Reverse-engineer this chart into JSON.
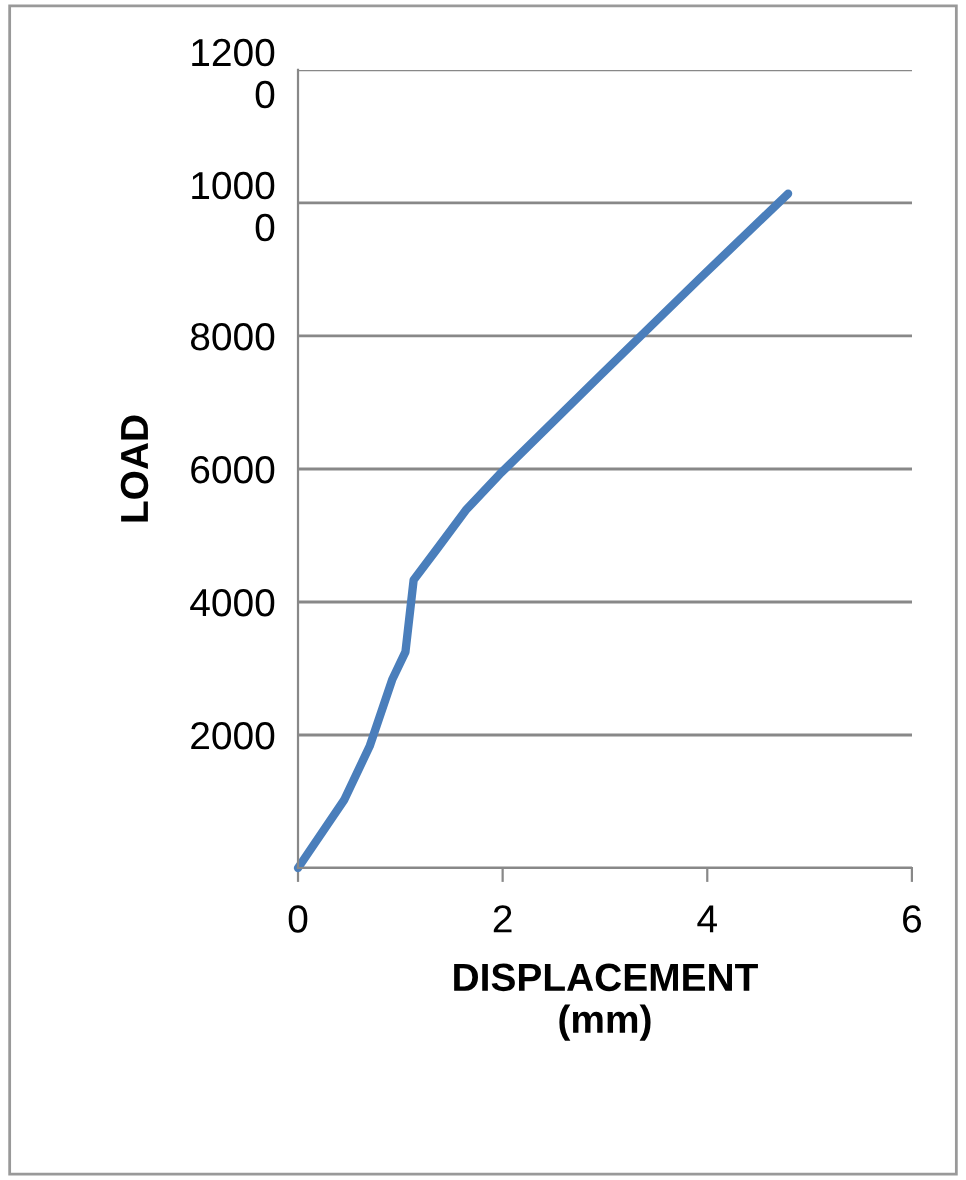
{
  "chart_data": {
    "type": "line",
    "xlabel": "DISPLACEMENT\n(mm)",
    "ylabel": "LOAD",
    "x": [
      0,
      0.45,
      0.7,
      0.92,
      1.05,
      1.13,
      1.35,
      1.64,
      1.97,
      2.95,
      3.93,
      4.79
    ],
    "series": [
      {
        "color": "#4a7ebb",
        "values": [
          0,
          1020,
          1830,
          2830,
          3250,
          4330,
          4780,
          5380,
          5920,
          7400,
          8870,
          10140
        ]
      }
    ],
    "xlim": [
      0,
      6
    ],
    "xticks": [
      0,
      2,
      4,
      6
    ],
    "ylim": [
      0,
      12000
    ],
    "yticks": [
      {
        "value": 0,
        "label": null
      },
      2000,
      4000,
      6000,
      8000,
      {
        "value": 10000,
        "label": "1000\n0"
      },
      {
        "value": 12000,
        "label": "1200\n0"
      }
    ],
    "grid": "y",
    "marker": "none",
    "line_style": "solid",
    "legend": false
  }
}
